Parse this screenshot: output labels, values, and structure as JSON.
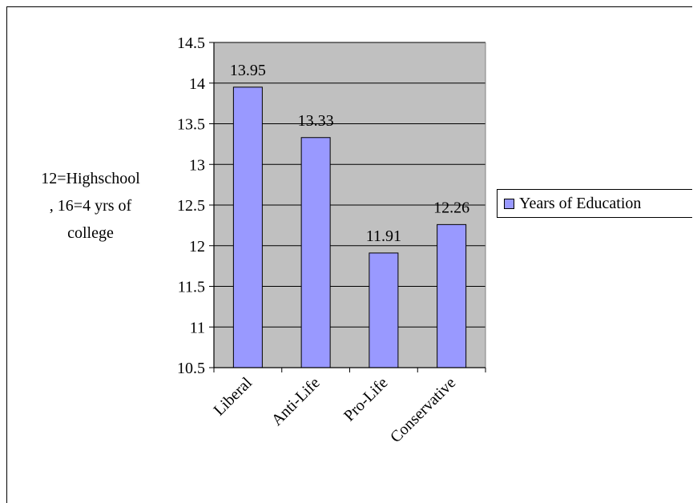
{
  "chart_data": {
    "type": "bar",
    "categories": [
      "Liberal",
      "Anti-Life",
      "Pro-Life",
      "Conservative"
    ],
    "series": [
      {
        "name": "Years of Education",
        "values": [
          13.95,
          13.33,
          11.91,
          12.26
        ],
        "color": "#9999ff"
      }
    ],
    "data_labels": [
      "13.95",
      "13.33",
      "11.91",
      "12.26"
    ],
    "ylabel": "12=Highschool\n, 16=4 yrs of\ncollege",
    "ylim": [
      10.5,
      14.5
    ],
    "yticks": [
      10.5,
      11,
      11.5,
      12,
      12.5,
      13,
      13.5,
      14,
      14.5
    ],
    "ytick_labels": [
      "10.5",
      "11",
      "11.5",
      "12",
      "12.5",
      "13",
      "13.5",
      "14",
      "14.5"
    ],
    "grid": true,
    "plot_background": "#c0c0c0",
    "legend_position": "right"
  },
  "legend": {
    "label": "Years of Education"
  }
}
